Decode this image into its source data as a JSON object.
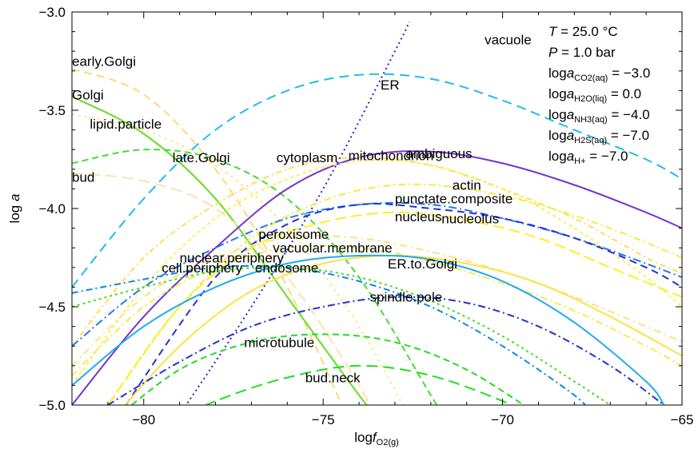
{
  "chart_data": {
    "type": "line",
    "xlabel": {
      "main": "log",
      "italic": "f",
      "sub": "O2(g)"
    },
    "ylabel": {
      "main": "log ",
      "italic": "a"
    },
    "xlim": [
      -82,
      -65
    ],
    "ylim": [
      -5.0,
      -3.0
    ],
    "x_ticks": [
      -80,
      -75,
      -70,
      -65
    ],
    "y_ticks": [
      -5.0,
      -4.5,
      -4.0,
      -3.5,
      -3.0
    ],
    "x_tick_labels": [
      "−80",
      "−75",
      "−70",
      "−65"
    ],
    "y_tick_labels": [
      "−5.0",
      "−4.5",
      "−4.0",
      "−3.5",
      "−3.0"
    ],
    "conditions": {
      "T": {
        "name": "T",
        "value": " = 25.0 °C"
      },
      "P": {
        "name": "P",
        "value": " = 1.0 bar"
      },
      "activities": [
        {
          "prefix": "log",
          "italic": "a",
          "sub": "CO2(aq)",
          "value": " = −3.0"
        },
        {
          "prefix": "log",
          "italic": "a",
          "sub": "H2O(liq)",
          "value": " = 0.0"
        },
        {
          "prefix": "log",
          "italic": "a",
          "sub": "NH3(aq)",
          "value": " = −4.0"
        },
        {
          "prefix": "log",
          "italic": "a",
          "sub": "H2S(aq)",
          "value": " = −7.0"
        },
        {
          "prefix": "log",
          "italic": "a",
          "sub": "H+",
          "value": " = −7.0"
        }
      ]
    },
    "series": [
      {
        "name": "early.Golgi",
        "color": "#FDD97A",
        "dash": "10,6",
        "label_x": -82.0,
        "label_y": -3.25,
        "points": [
          [
            -82,
            -3.29
          ],
          [
            -80,
            -3.42
          ],
          [
            -78,
            -3.8
          ],
          [
            -76,
            -4.4
          ],
          [
            -74,
            -5.2
          ]
        ]
      },
      {
        "name": "Golgi",
        "color": "#66DD22",
        "dash": "",
        "label_x": -82.0,
        "label_y": -3.42,
        "points": [
          [
            -82,
            -3.43
          ],
          [
            -80,
            -3.62
          ],
          [
            -78,
            -3.95
          ],
          [
            -76,
            -4.45
          ],
          [
            -74,
            -4.95
          ],
          [
            -72.9,
            -5.2
          ]
        ]
      },
      {
        "name": "lipid.particle",
        "color": "#FFE680",
        "dash": "3,5",
        "label_x": -81.5,
        "label_y": -3.57,
        "points": [
          [
            -82,
            -3.52
          ],
          [
            -80,
            -3.6
          ],
          [
            -78,
            -3.78
          ],
          [
            -76,
            -4.1
          ],
          [
            -74,
            -4.6
          ],
          [
            -72.5,
            -5.1
          ]
        ]
      },
      {
        "name": "late.Golgi",
        "color": "#44DD33",
        "dash": "8,5",
        "label_x": -79.2,
        "label_y": -3.74,
        "points": [
          [
            -82,
            -3.77
          ],
          [
            -80,
            -3.7
          ],
          [
            -78,
            -3.75
          ],
          [
            -76,
            -3.95
          ],
          [
            -74,
            -4.35
          ],
          [
            -72,
            -4.95
          ],
          [
            -71.5,
            -5.1
          ]
        ]
      },
      {
        "name": "bud",
        "color": "#FFE0B0",
        "dash": "14,7",
        "label_x": -82.0,
        "label_y": -3.84,
        "points": [
          [
            -82,
            -3.82
          ],
          [
            -80,
            -3.86
          ],
          [
            -78,
            -4.0
          ],
          [
            -76,
            -4.35
          ],
          [
            -74,
            -4.9
          ],
          [
            -73.5,
            -5.1
          ]
        ]
      },
      {
        "name": "ER",
        "color": "#22BBEE",
        "dash": "12,7",
        "label_x": -73.4,
        "label_y": -3.37,
        "points": [
          [
            -82,
            -4.4
          ],
          [
            -80,
            -3.95
          ],
          [
            -78,
            -3.6
          ],
          [
            -76,
            -3.4
          ],
          [
            -74,
            -3.32
          ],
          [
            -72,
            -3.34
          ],
          [
            -70,
            -3.45
          ],
          [
            -68,
            -3.6
          ],
          [
            -66,
            -3.75
          ],
          [
            -65,
            -3.85
          ]
        ]
      },
      {
        "name": "vacuole",
        "color": "#2222CC",
        "dash": "2,4",
        "label_x": -70.5,
        "label_y": -3.14,
        "points": [
          [
            -79,
            -5.05
          ],
          [
            -77,
            -4.5
          ],
          [
            -75,
            -3.9
          ],
          [
            -73,
            -3.2
          ],
          [
            -72.6,
            -3.05
          ]
        ]
      },
      {
        "name": "mitochondrion",
        "color": "#7733CC",
        "dash": "",
        "label_x": -74.3,
        "label_y": -3.73,
        "points": [
          [
            -82,
            -5.0
          ],
          [
            -80,
            -4.55
          ],
          [
            -78,
            -4.2
          ],
          [
            -76,
            -3.9
          ],
          [
            -74,
            -3.74
          ],
          [
            -72,
            -3.71
          ],
          [
            -70,
            -3.77
          ],
          [
            -68,
            -3.88
          ],
          [
            -66,
            -4.02
          ],
          [
            -65,
            -4.1
          ]
        ]
      },
      {
        "name": "ambiguous",
        "color": "#FFDD55",
        "dash": "7,4,2,4",
        "label_x": -72.7,
        "label_y": -3.72,
        "points": [
          [
            -82,
            -4.7
          ],
          [
            -80,
            -4.25
          ],
          [
            -78,
            -3.98
          ],
          [
            -76,
            -3.8
          ],
          [
            -74,
            -3.74
          ],
          [
            -72,
            -3.78
          ],
          [
            -70,
            -3.9
          ],
          [
            -68,
            -4.05
          ],
          [
            -66,
            -4.25
          ],
          [
            -65,
            -4.33
          ]
        ]
      },
      {
        "name": "cytoplasm",
        "color": "#FFEE55",
        "dash": "4,4",
        "label_x": -76.3,
        "label_y": -3.74,
        "points": [
          [
            -82,
            -4.9
          ],
          [
            -80,
            -4.4
          ],
          [
            -78,
            -4.05
          ],
          [
            -76,
            -3.85
          ],
          [
            -74,
            -3.76
          ],
          [
            -72,
            -3.78
          ],
          [
            -70,
            -3.9
          ],
          [
            -68,
            -4.1
          ],
          [
            -66,
            -4.35
          ],
          [
            -65,
            -4.5
          ]
        ]
      },
      {
        "name": "actin",
        "color": "#EEEE44",
        "dash": "9,4,2,4",
        "label_x": -71.4,
        "label_y": -3.88,
        "points": [
          [
            -81,
            -5.0
          ],
          [
            -79,
            -4.5
          ],
          [
            -77,
            -4.15
          ],
          [
            -75,
            -3.96
          ],
          [
            -73,
            -3.88
          ],
          [
            -71,
            -3.9
          ],
          [
            -69,
            -3.98
          ],
          [
            -67,
            -4.1
          ],
          [
            -65,
            -4.25
          ]
        ]
      },
      {
        "name": "punctate.composite",
        "color": "#2277EE",
        "dash": "10,4,2,4",
        "label_x": -73.0,
        "label_y": -3.95,
        "points": [
          [
            -82,
            -4.7
          ],
          [
            -80,
            -4.4
          ],
          [
            -78,
            -4.2
          ],
          [
            -76,
            -4.05
          ],
          [
            -74,
            -3.98
          ],
          [
            -72,
            -3.98
          ],
          [
            -70,
            -4.05
          ],
          [
            -68,
            -4.15
          ],
          [
            -66,
            -4.28
          ],
          [
            -65,
            -4.35
          ]
        ]
      },
      {
        "name": "nucleus",
        "color": "#2233CC",
        "dash": "9,6",
        "label_x": -73.0,
        "label_y": -4.04,
        "points": [
          [
            -80.5,
            -5.0
          ],
          [
            -78,
            -4.35
          ],
          [
            -76,
            -4.08
          ],
          [
            -74,
            -3.98
          ],
          [
            -72,
            -4.0
          ],
          [
            -70,
            -4.05
          ],
          [
            -68,
            -4.15
          ],
          [
            -66,
            -4.3
          ],
          [
            -65,
            -4.4
          ]
        ]
      },
      {
        "name": "nucleolus",
        "color": "#FFEE22",
        "dash": "14,6",
        "label_x": -71.7,
        "label_y": -4.05,
        "points": [
          [
            -81,
            -5.0
          ],
          [
            -79,
            -4.5
          ],
          [
            -77,
            -4.2
          ],
          [
            -75,
            -4.07
          ],
          [
            -73,
            -4.02
          ],
          [
            -71,
            -4.06
          ],
          [
            -69,
            -4.15
          ],
          [
            -67,
            -4.3
          ],
          [
            -65,
            -4.45
          ]
        ]
      },
      {
        "name": "peroxisome",
        "color": "#FFE080",
        "dash": "9,5,2,5",
        "label_x": -76.8,
        "label_y": -4.13,
        "points": [
          [
            -82,
            -4.8
          ],
          [
            -80,
            -4.45
          ],
          [
            -78,
            -4.25
          ],
          [
            -76,
            -4.15
          ],
          [
            -74,
            -4.15
          ],
          [
            -72,
            -4.22
          ],
          [
            -70,
            -4.32
          ],
          [
            -68,
            -4.45
          ],
          [
            -66,
            -4.6
          ],
          [
            -65,
            -4.68
          ]
        ]
      },
      {
        "name": "vacuolar.membrane",
        "color": "#EEEE55",
        "dash": "9,4,2,4",
        "label_x": -76.4,
        "label_y": -4.2,
        "points": [
          [
            -82,
            -4.85
          ],
          [
            -80,
            -4.5
          ],
          [
            -78,
            -4.3
          ],
          [
            -76,
            -4.2
          ],
          [
            -74,
            -4.2
          ],
          [
            -72,
            -4.27
          ],
          [
            -70,
            -4.38
          ],
          [
            -68,
            -4.52
          ],
          [
            -66,
            -4.7
          ],
          [
            -65,
            -4.8
          ]
        ]
      },
      {
        "name": "ER.to.Golgi",
        "color": "#FFE044",
        "dash": "",
        "label_x": -73.2,
        "label_y": -4.28,
        "points": [
          [
            -81,
            -5.1
          ],
          [
            -79,
            -4.7
          ],
          [
            -77,
            -4.42
          ],
          [
            -75,
            -4.28
          ],
          [
            -73,
            -4.24
          ],
          [
            -71,
            -4.28
          ],
          [
            -69,
            -4.38
          ],
          [
            -67,
            -4.55
          ],
          [
            -65,
            -4.75
          ]
        ]
      },
      {
        "name": "nuclear.periphery",
        "color": "#1188DD",
        "dash": "8,4,2,4",
        "label_x": -79.0,
        "label_y": -4.25,
        "points": [
          [
            -82,
            -4.43
          ],
          [
            -80,
            -4.36
          ],
          [
            -78,
            -4.3
          ],
          [
            -76,
            -4.3
          ],
          [
            -74,
            -4.37
          ],
          [
            -72,
            -4.5
          ],
          [
            -70,
            -4.7
          ],
          [
            -68,
            -4.95
          ],
          [
            -67.5,
            -5.05
          ]
        ]
      },
      {
        "name": "cell.periphery",
        "color": "#22AAEE",
        "dash": "",
        "label_x": -79.5,
        "label_y": -4.3,
        "points": [
          [
            -82,
            -4.9
          ],
          [
            -80,
            -4.6
          ],
          [
            -78,
            -4.4
          ],
          [
            -76,
            -4.28
          ],
          [
            -74,
            -4.24
          ],
          [
            -72,
            -4.26
          ],
          [
            -70,
            -4.37
          ],
          [
            -68,
            -4.58
          ],
          [
            -66,
            -4.88
          ],
          [
            -65.5,
            -5.0
          ]
        ]
      },
      {
        "name": "endosome",
        "color": "#44DD22",
        "dash": "3,4",
        "label_x": -76.9,
        "label_y": -4.3,
        "points": [
          [
            -82,
            -4.5
          ],
          [
            -80,
            -4.4
          ],
          [
            -78,
            -4.32
          ],
          [
            -76,
            -4.3
          ],
          [
            -74,
            -4.35
          ],
          [
            -72,
            -4.47
          ],
          [
            -70,
            -4.65
          ],
          [
            -68,
            -4.88
          ],
          [
            -67,
            -5.0
          ]
        ]
      },
      {
        "name": "spindle.pole",
        "color": "#2233CC",
        "dash": "9,4,2,4",
        "label_x": -73.7,
        "label_y": -4.45,
        "points": [
          [
            -81,
            -5.0
          ],
          [
            -79,
            -4.78
          ],
          [
            -77,
            -4.6
          ],
          [
            -75,
            -4.5
          ],
          [
            -73,
            -4.45
          ],
          [
            -71,
            -4.48
          ],
          [
            -69,
            -4.6
          ],
          [
            -67,
            -4.8
          ],
          [
            -65.5,
            -5.0
          ]
        ]
      },
      {
        "name": "microtubule",
        "color": "#22DD22",
        "dash": "8,5",
        "label_x": -77.2,
        "label_y": -4.68,
        "points": [
          [
            -81,
            -5.1
          ],
          [
            -79,
            -4.82
          ],
          [
            -77,
            -4.68
          ],
          [
            -75,
            -4.64
          ],
          [
            -73,
            -4.68
          ],
          [
            -71,
            -4.82
          ],
          [
            -69,
            -5.05
          ]
        ]
      },
      {
        "name": "bud.neck",
        "color": "#22DD22",
        "dash": "14,7",
        "label_x": -75.5,
        "label_y": -4.86,
        "points": [
          [
            -80,
            -5.15
          ],
          [
            -78,
            -4.98
          ],
          [
            -76,
            -4.86
          ],
          [
            -74,
            -4.8
          ],
          [
            -72,
            -4.85
          ],
          [
            -70,
            -4.98
          ],
          [
            -69,
            -5.08
          ]
        ]
      }
    ]
  }
}
